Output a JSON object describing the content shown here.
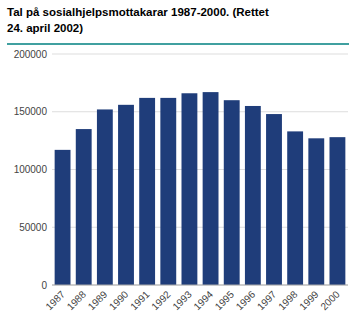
{
  "chart_data": {
    "type": "bar",
    "title": [
      "Tal på sosialhjelpsmottakarar 1987-2000. (Rettet",
      "24. april 2002)"
    ],
    "categories": [
      "1987",
      "1988",
      "1989",
      "1990",
      "1991",
      "1992",
      "1993",
      "1994",
      "1995",
      "1996",
      "1997",
      "1998",
      "1999",
      "2000"
    ],
    "values": [
      117000,
      135000,
      152000,
      156000,
      162000,
      162000,
      166000,
      167000,
      160000,
      155000,
      148000,
      133000,
      127000,
      128000
    ],
    "color": "#1f3d7a",
    "ylim": [
      0,
      200000
    ],
    "yticks": [
      0,
      50000,
      100000,
      150000,
      200000
    ],
    "grid": true
  }
}
